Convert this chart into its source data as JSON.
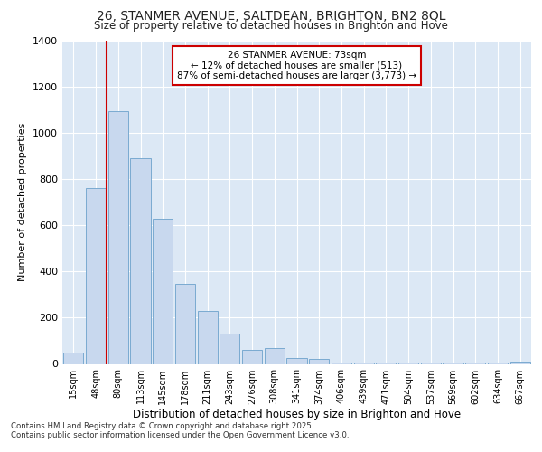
{
  "title_line1": "26, STANMER AVENUE, SALTDEAN, BRIGHTON, BN2 8QL",
  "title_line2": "Size of property relative to detached houses in Brighton and Hove",
  "xlabel": "Distribution of detached houses by size in Brighton and Hove",
  "ylabel": "Number of detached properties",
  "categories": [
    "15sqm",
    "48sqm",
    "80sqm",
    "113sqm",
    "145sqm",
    "178sqm",
    "211sqm",
    "243sqm",
    "276sqm",
    "308sqm",
    "341sqm",
    "374sqm",
    "406sqm",
    "439sqm",
    "471sqm",
    "504sqm",
    "537sqm",
    "569sqm",
    "602sqm",
    "634sqm",
    "667sqm"
  ],
  "values": [
    50,
    760,
    1095,
    890,
    630,
    345,
    230,
    130,
    60,
    70,
    25,
    20,
    5,
    5,
    5,
    5,
    5,
    5,
    5,
    5,
    10
  ],
  "bar_color": "#c8d8ee",
  "bar_edge_color": "#7aaad0",
  "vline_x": 2,
  "vline_color": "#cc0000",
  "annotation_text": "26 STANMER AVENUE: 73sqm\n← 12% of detached houses are smaller (513)\n87% of semi-detached houses are larger (3,773) →",
  "annotation_box_color": "#ffffff",
  "annotation_box_edge": "#cc0000",
  "bg_color": "#ffffff",
  "plot_bg_color": "#dce8f5",
  "grid_color": "#ffffff",
  "footer_line1": "Contains HM Land Registry data © Crown copyright and database right 2025.",
  "footer_line2": "Contains public sector information licensed under the Open Government Licence v3.0.",
  "ylim": [
    0,
    1400
  ],
  "yticks": [
    0,
    200,
    400,
    600,
    800,
    1000,
    1200,
    1400
  ]
}
